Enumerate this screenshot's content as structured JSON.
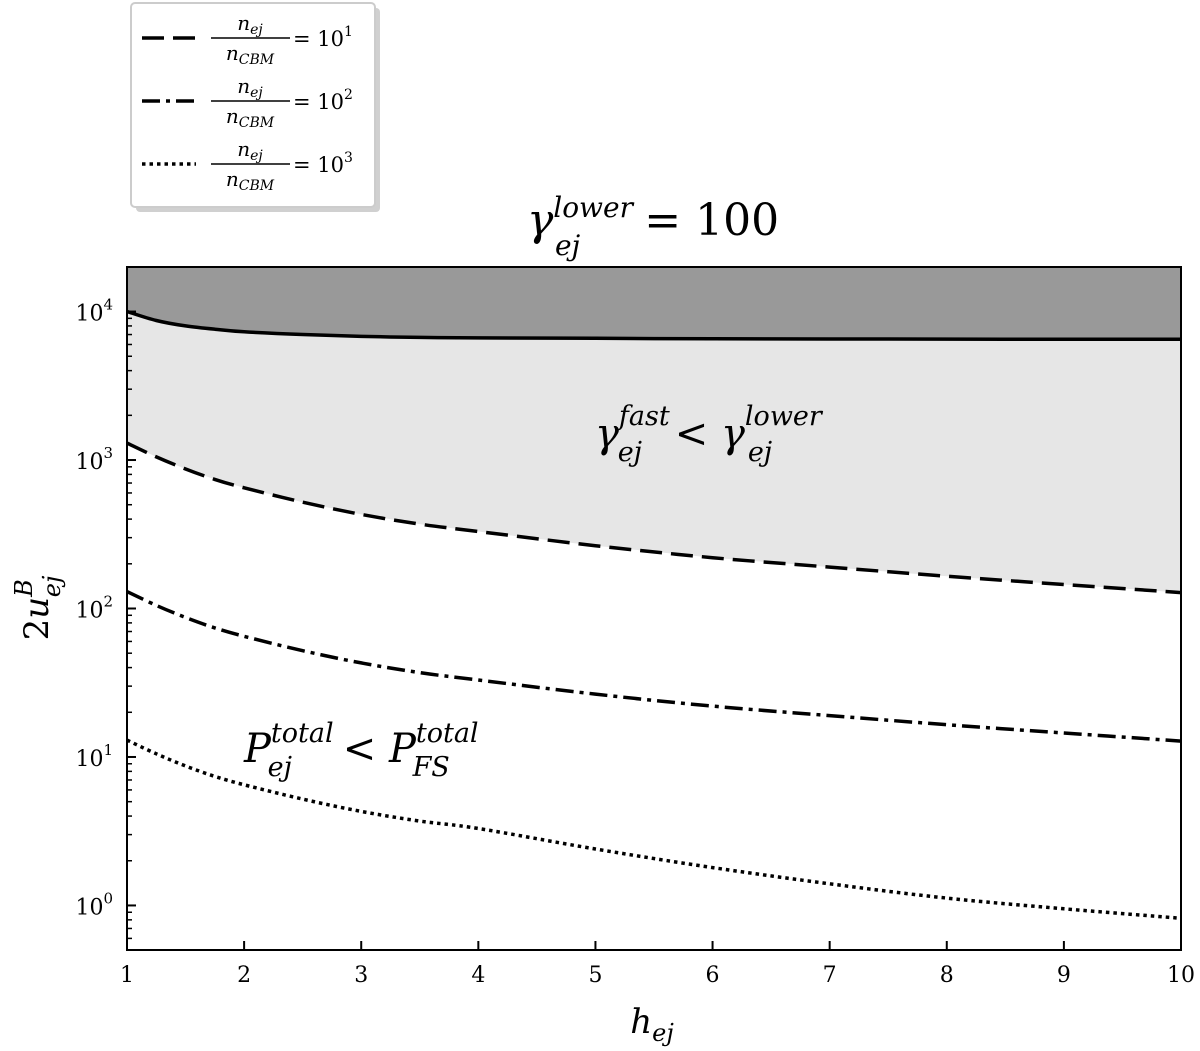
{
  "chart_data": {
    "type": "line",
    "title": {
      "base": "γ",
      "sub": "ej",
      "sup": "lower",
      "rest": " = 100"
    },
    "xlabel": {
      "base": "h",
      "sub": "ej"
    },
    "ylabel": {
      "pre": "2",
      "base": "u",
      "sub": "ej",
      "sup": "B"
    },
    "xlim": [
      1,
      10
    ],
    "ylim_log10": [
      -0.3,
      4.3
    ],
    "yscale": "log",
    "xticks": [
      "1",
      "2",
      "3",
      "4",
      "5",
      "6",
      "7",
      "8",
      "9",
      "10"
    ],
    "xtick_values": [
      1,
      2,
      3,
      4,
      5,
      6,
      7,
      8,
      9,
      10
    ],
    "yticks": [
      {
        "base": "10",
        "exp": "0",
        "value": 1
      },
      {
        "base": "10",
        "exp": "1",
        "value": 10
      },
      {
        "base": "10",
        "exp": "2",
        "value": 100
      },
      {
        "base": "10",
        "exp": "3",
        "value": 1000
      },
      {
        "base": "10",
        "exp": "4",
        "value": 10000
      }
    ],
    "x": [
      1,
      1.25,
      1.5,
      1.75,
      2,
      2.5,
      3,
      3.5,
      4,
      5,
      6,
      7,
      8,
      9,
      10
    ],
    "boundary_curve": {
      "style": "solid",
      "values": [
        10000,
        8700,
        8000,
        7600,
        7300,
        7000,
        6800,
        6700,
        6650,
        6600,
        6550,
        6530,
        6520,
        6510,
        6500
      ]
    },
    "series": [
      {
        "legend": {
          "num": "n",
          "num_sub": "ej",
          "den": "n",
          "den_sub": "CBM",
          "eq": " = 10",
          "exp": "1"
        },
        "style": "dashed",
        "values": [
          1300,
          1050,
          870,
          740,
          650,
          520,
          430,
          370,
          330,
          265,
          220,
          190,
          165,
          145,
          128
        ]
      },
      {
        "legend": {
          "num": "n",
          "num_sub": "ej",
          "den": "n",
          "den_sub": "CBM",
          "eq": " = 10",
          "exp": "2"
        },
        "style": "dashdot",
        "values": [
          130,
          105,
          87,
          74,
          65,
          52,
          43,
          37,
          33,
          26.5,
          22,
          19,
          16.5,
          14.5,
          12.8
        ]
      },
      {
        "legend": {
          "num": "n",
          "num_sub": "ej",
          "den": "n",
          "den_sub": "CBM",
          "eq": " = 10",
          "exp": "3"
        },
        "style": "dotted",
        "values": [
          13,
          10.5,
          8.7,
          7.4,
          6.5,
          5.2,
          4.3,
          3.7,
          3.3,
          2.4,
          1.8,
          1.4,
          1.12,
          0.95,
          0.82
        ]
      }
    ],
    "regions": [
      {
        "name": "above-boundary",
        "color": "#999999"
      },
      {
        "name": "fast-cooling",
        "color": "#e6e6e6"
      }
    ],
    "annotations": [
      {
        "id": "gamma-fast",
        "base": "γ",
        "sub": "ej",
        "sup": "fast",
        "op": " < ",
        "base2": "γ",
        "sub2": "ej",
        "sup2": "lower"
      },
      {
        "id": "pressure",
        "base": "P",
        "sub": "ej",
        "sup": "total",
        "op": " < ",
        "base2": "P",
        "sub2": "FS",
        "sup2": "total"
      }
    ],
    "legend_position": "top-left-outside",
    "grid": false
  }
}
